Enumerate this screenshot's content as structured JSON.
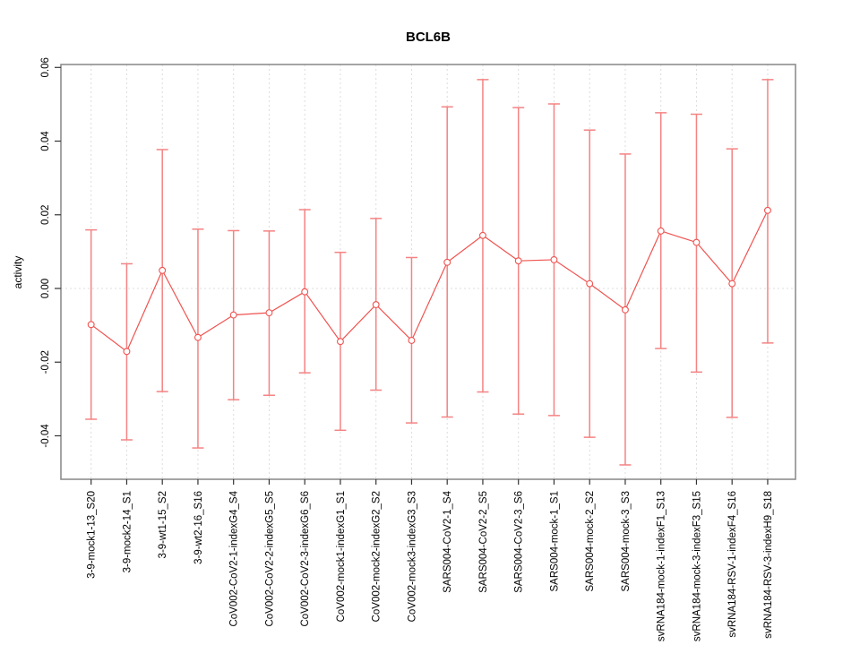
{
  "chart_data": {
    "type": "line",
    "subtype": "points-with-error-bars",
    "title": "BCL6B",
    "xlabel": "",
    "ylabel": "activity",
    "legend": "none",
    "grid": {
      "vertical_per_category": true,
      "zero_line": true,
      "style": "dotted"
    },
    "marker": "open-circle",
    "categories": [
      "3-9-mock1-13_S20",
      "3-9-mock2-14_S1",
      "3-9-wt1-15_S2",
      "3-9-wt2-16_S16",
      "CoV002-CoV2-1-indexG4_S4",
      "CoV002-CoV2-2-indexG5_S5",
      "CoV002-CoV2-3-indexG6_S6",
      "CoV002-mock1-indexG1_S1",
      "CoV002-mock2-indexG2_S2",
      "CoV002-mock3-indexG3_S3",
      "SARS004-CoV2-1_S4",
      "SARS004-CoV2-2_S5",
      "SARS004-CoV2-3_S6",
      "SARS004-mock-1_S1",
      "SARS004-mock-2_S2",
      "SARS004-mock-3_S3",
      "svRNA184-mock-1-indexF1_S13",
      "svRNA184-mock-3-indexF3_S15",
      "svRNA184-RSV-1-indexF4_S16",
      "svRNA184-RSV-3-indexH9_S18"
    ],
    "series": [
      {
        "name": "activity",
        "values": [
          -0.0098,
          -0.0171,
          0.0049,
          -0.0133,
          -0.0072,
          -0.0066,
          -0.0009,
          -0.0144,
          -0.0044,
          -0.0141,
          0.0071,
          0.0144,
          0.0075,
          0.0078,
          0.0013,
          -0.0058,
          0.0156,
          0.0125,
          0.0013,
          0.0212
        ],
        "err_upper": [
          0.0159,
          0.0067,
          0.0377,
          0.0161,
          0.0157,
          0.0156,
          0.0214,
          0.0098,
          0.019,
          0.0084,
          0.0493,
          0.0567,
          0.0491,
          0.0501,
          0.043,
          0.0365,
          0.0477,
          0.0473,
          0.0379,
          0.0567
        ],
        "err_lower": [
          -0.0355,
          -0.0411,
          -0.028,
          -0.0433,
          -0.0302,
          -0.029,
          -0.0229,
          -0.0385,
          -0.0276,
          -0.0365,
          -0.0349,
          -0.0281,
          -0.0341,
          -0.0345,
          -0.0404,
          -0.0479,
          -0.0163,
          -0.0227,
          -0.035,
          -0.0148
        ]
      }
    ],
    "yticks": {
      "values": [
        0.06,
        0.04,
        0.02,
        0.0,
        -0.02,
        -0.04
      ],
      "labels": [
        "0.06",
        "0.04",
        "0.02",
        "0.00",
        "-0.02",
        "-0.04"
      ]
    },
    "ylim": [
      -0.0518,
      0.0608
    ],
    "colors": {
      "series": "#ef5350",
      "error_bar": "#f48383",
      "grid": "#dcdcdc",
      "border": "#8e8e8e",
      "tick": "#333333",
      "text": "#000000",
      "background": "#ffffff"
    }
  }
}
